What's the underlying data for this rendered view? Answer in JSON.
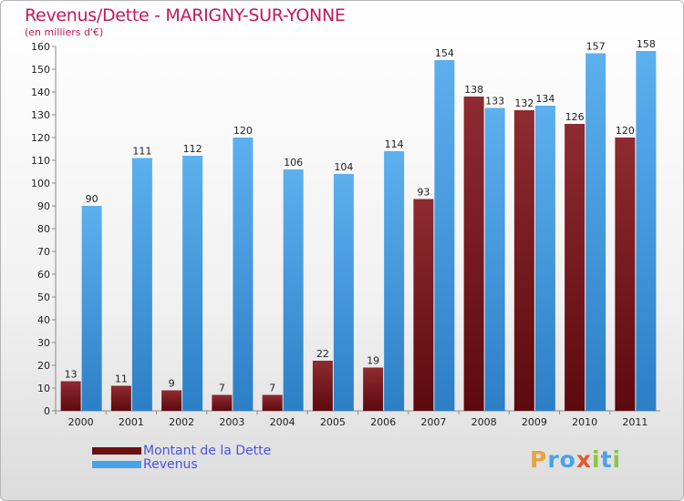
{
  "title": "Revenus/Dette - MARIGNY-SUR-YONNE",
  "subtitle": "(en milliers d'€)",
  "colors": {
    "title": "#c2185b",
    "dette": "#7a1e22",
    "revenus": "#4aa3e6",
    "legend_text": "#4a56d8"
  },
  "logo": {
    "text": "Proxiti",
    "letters": [
      {
        "ch": "P",
        "color": "#e8a33a"
      },
      {
        "ch": "r",
        "color": "#4aa3e6"
      },
      {
        "ch": "o",
        "color": "#4aa3e6"
      },
      {
        "ch": "x",
        "color": "#e05a2b"
      },
      {
        "ch": "i",
        "color": "#8cc63f"
      },
      {
        "ch": "t",
        "color": "#4aa3e6"
      },
      {
        "ch": "i",
        "color": "#8cc63f"
      }
    ]
  },
  "chart_data": {
    "type": "bar",
    "title": "Revenus/Dette - MARIGNY-SUR-YONNE",
    "subtitle": "(en milliers d'€)",
    "categories": [
      "2000",
      "2001",
      "2002",
      "2003",
      "2004",
      "2005",
      "2006",
      "2007",
      "2008",
      "2009",
      "2010",
      "2011"
    ],
    "series": [
      {
        "name": "Montant de la Dette",
        "color": "#7a1e22",
        "values": [
          13,
          11,
          9,
          7,
          7,
          22,
          19,
          93,
          138,
          132,
          126,
          120
        ]
      },
      {
        "name": "Revenus",
        "color": "#4aa3e6",
        "values": [
          90,
          111,
          112,
          120,
          106,
          104,
          114,
          154,
          133,
          134,
          157,
          158
        ]
      }
    ],
    "ylim": [
      0,
      160
    ],
    "yticks": [
      0,
      10,
      20,
      30,
      40,
      50,
      60,
      70,
      80,
      90,
      100,
      110,
      120,
      130,
      140,
      150,
      160
    ],
    "grid": false,
    "legend_position": "bottom-left"
  }
}
